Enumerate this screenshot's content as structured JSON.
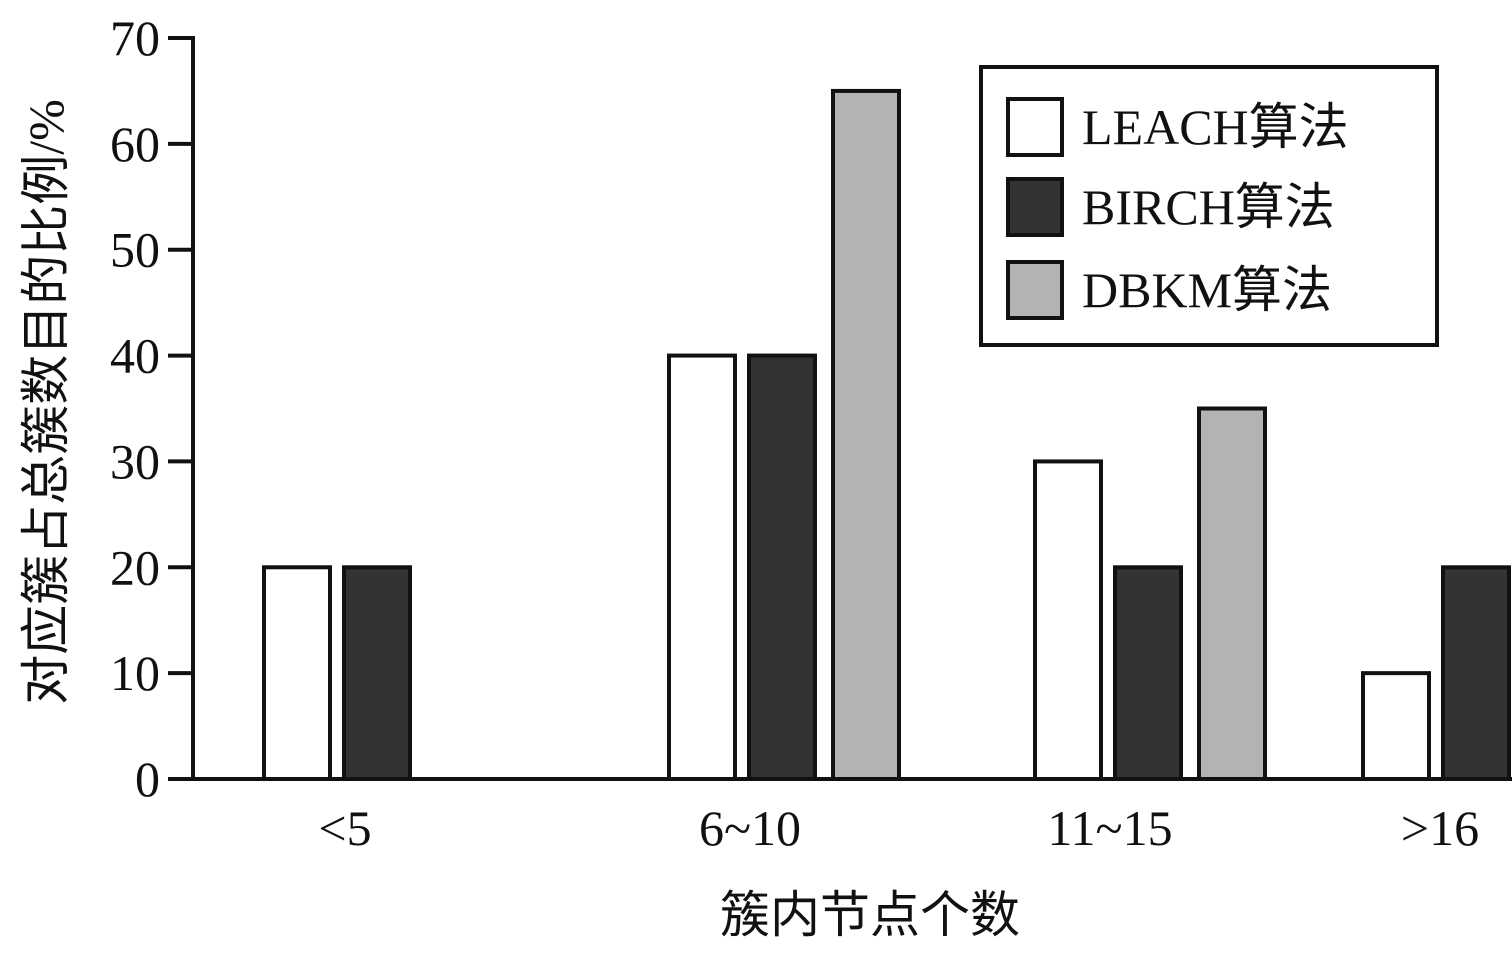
{
  "chart_data": {
    "type": "bar",
    "title": "",
    "xlabel": "簇内节点个数",
    "ylabel": "对应簇占总簇数目的比例/%",
    "categories": [
      "<5",
      "6~10",
      "11~15",
      ">16"
    ],
    "ylim": [
      0,
      70
    ],
    "yticks": [
      0,
      10,
      20,
      30,
      40,
      50,
      60,
      70
    ],
    "grid": false,
    "legend_position": "top-right",
    "series": [
      {
        "name": "LEACH算法",
        "values": [
          20,
          40,
          30,
          10
        ],
        "color": "#ffffff"
      },
      {
        "name": "BIRCH算法",
        "values": [
          20,
          40,
          20,
          20
        ],
        "color": "#333333"
      },
      {
        "name": "DBKM算法",
        "values": [
          0,
          65,
          35,
          0
        ],
        "color": "#b3b3b3"
      }
    ]
  }
}
